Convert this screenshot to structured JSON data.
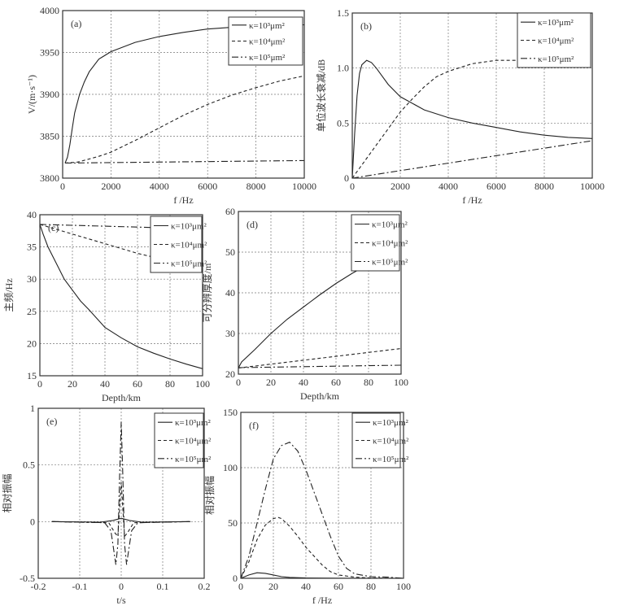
{
  "chart_data": [
    {
      "type": "line",
      "panel_label": "(a)",
      "xlabel": "f /Hz",
      "ylabel": "V/(m·s⁻¹)",
      "xlim": [
        0,
        10000
      ],
      "ylim": [
        3800,
        4000
      ],
      "grid": true,
      "legend": "top-right",
      "xticks": [
        0,
        2000,
        4000,
        6000,
        8000,
        10000
      ],
      "xtick_labels": [
        "0",
        "2000",
        "4000",
        "6000",
        "8000",
        "10000"
      ],
      "yticks": [
        3800,
        3850,
        3900,
        3950,
        4000
      ],
      "ytick_labels": [
        "3800",
        "3850",
        "3900",
        "3950",
        "4000"
      ],
      "series": [
        {
          "name": "κ=10³μm²",
          "x": [
            100,
            200,
            300,
            400,
            500,
            700,
            900,
            1100,
            1500,
            2000,
            3000,
            4000,
            5000,
            6000,
            7000,
            8000,
            10000
          ],
          "y": [
            3818,
            3825,
            3840,
            3860,
            3878,
            3900,
            3915,
            3927,
            3942,
            3951,
            3962,
            3969,
            3974,
            3978,
            3980,
            3981,
            3983
          ]
        },
        {
          "name": "κ=10⁴μm²",
          "x": [
            100,
            600,
            1000,
            1500,
            2000,
            3000,
            4000,
            5000,
            6000,
            7000,
            8000,
            9000,
            10000
          ],
          "y": [
            3818,
            3819,
            3822,
            3826,
            3831,
            3845,
            3860,
            3875,
            3888,
            3899,
            3908,
            3916,
            3922
          ]
        },
        {
          "name": "κ=10⁵μm²",
          "x": [
            100,
            10000
          ],
          "y": [
            3818,
            3821
          ]
        }
      ]
    },
    {
      "type": "line",
      "panel_label": "(b)",
      "xlabel": "f /Hz",
      "ylabel": "单位波长衰减/dB",
      "xlim": [
        0,
        10000
      ],
      "ylim": [
        0,
        1.5
      ],
      "grid": true,
      "legend": "top-right",
      "xticks": [
        0,
        2000,
        4000,
        6000,
        8000,
        10000
      ],
      "xtick_labels": [
        "0",
        "2000",
        "4000",
        "6000",
        "8000",
        "10000"
      ],
      "yticks": [
        0,
        0.5,
        1.0,
        1.5
      ],
      "ytick_labels": [
        "0",
        "0.5",
        "1.0",
        "1.5"
      ],
      "series": [
        {
          "name": "κ=10³μm²",
          "x": [
            0,
            100,
            200,
            300,
            400,
            600,
            800,
            1000,
            1500,
            2000,
            3000,
            4000,
            5000,
            6000,
            7000,
            8000,
            9000,
            10000
          ],
          "y": [
            0,
            0.4,
            0.75,
            0.95,
            1.03,
            1.07,
            1.05,
            1.0,
            0.85,
            0.74,
            0.62,
            0.55,
            0.5,
            0.46,
            0.42,
            0.39,
            0.37,
            0.36
          ]
        },
        {
          "name": "κ=10⁴μm²",
          "x": [
            0,
            500,
            1000,
            1500,
            2000,
            2500,
            3000,
            3500,
            4000,
            5000,
            6000,
            7000,
            8000
          ],
          "y": [
            0,
            0.15,
            0.3,
            0.45,
            0.6,
            0.72,
            0.83,
            0.92,
            0.97,
            1.04,
            1.07,
            1.07,
            1.07
          ]
        },
        {
          "name": "κ=10⁵μm²",
          "x": [
            0,
            10000
          ],
          "y": [
            0,
            0.34
          ]
        }
      ]
    },
    {
      "type": "line",
      "panel_label": "(c)",
      "xlabel": "Depth/km",
      "ylabel": "主频/Hz",
      "xlim": [
        0,
        100
      ],
      "ylim": [
        15,
        40
      ],
      "grid": true,
      "legend": "top-right",
      "xticks": [
        0,
        20,
        40,
        60,
        80,
        100
      ],
      "xtick_labels": [
        "0",
        "20",
        "40",
        "60",
        "80",
        "100"
      ],
      "yticks": [
        15,
        20,
        25,
        30,
        35,
        40
      ],
      "ytick_labels": [
        "15",
        "20",
        "25",
        "30",
        "35",
        "40"
      ],
      "series": [
        {
          "name": "κ=10³μm²",
          "x": [
            0,
            2,
            5,
            10,
            15,
            20,
            25,
            30,
            40,
            50,
            60,
            70,
            80,
            90,
            100
          ],
          "y": [
            38.5,
            37,
            35,
            32.5,
            30,
            28.3,
            26.6,
            25.3,
            22.5,
            20.9,
            19.5,
            18.5,
            17.6,
            16.8,
            16.1
          ]
        },
        {
          "name": "κ=10⁴μm²",
          "x": [
            0,
            20,
            40,
            60,
            70,
            100
          ],
          "y": [
            38.5,
            37,
            35.5,
            34,
            33.4,
            32
          ]
        },
        {
          "name": "κ=10⁵μm²",
          "x": [
            0,
            100
          ],
          "y": [
            38.5,
            37.8
          ]
        }
      ]
    },
    {
      "type": "line",
      "panel_label": "(d)",
      "xlabel": "Depth/km",
      "ylabel": "可分辨厚度/m",
      "xlim": [
        0,
        100
      ],
      "ylim": [
        20,
        60
      ],
      "grid": true,
      "legend": "top-right",
      "xticks": [
        0,
        20,
        40,
        60,
        80,
        100
      ],
      "xtick_labels": [
        "0",
        "20",
        "40",
        "60",
        "80",
        "100"
      ],
      "yticks": [
        20,
        30,
        40,
        50,
        60
      ],
      "ytick_labels": [
        "20",
        "30",
        "40",
        "50",
        "60"
      ],
      "series": [
        {
          "name": "κ=10³μm²",
          "x": [
            0,
            2,
            10,
            20,
            30,
            40,
            50,
            60,
            70,
            80
          ],
          "y": [
            21.5,
            23,
            26,
            30,
            33.5,
            36.5,
            39.5,
            42.3,
            44.8,
            47
          ]
        },
        {
          "name": "κ=10⁴μm²",
          "x": [
            0,
            100
          ],
          "y": [
            21.5,
            26.3
          ]
        },
        {
          "name": "κ=10⁵μm²",
          "x": [
            0,
            100
          ],
          "y": [
            21.6,
            22.2
          ]
        }
      ]
    },
    {
      "type": "line",
      "panel_label": "(e)",
      "xlabel": "t/s",
      "ylabel": "相对振幅",
      "xlim": [
        -0.2,
        0.2
      ],
      "ylim": [
        -0.5,
        1
      ],
      "grid": true,
      "legend": "top-right",
      "xticks": [
        -0.2,
        -0.1,
        0,
        0.1,
        0.2
      ],
      "xtick_labels": [
        "-0.2",
        "-0.1",
        "0",
        "0.1",
        "0.2"
      ],
      "yticks": [
        -0.5,
        0,
        0.5,
        1
      ],
      "ytick_labels": [
        "-0.5",
        "0",
        "0.5",
        "1"
      ],
      "series": [
        {
          "name": "κ=10³μm²",
          "x": [
            -0.167,
            -0.05,
            -0.02,
            0,
            0.02,
            0.05,
            0.167
          ],
          "y": [
            0,
            -0.005,
            0.01,
            0.03,
            0.01,
            -0.005,
            0
          ]
        },
        {
          "name": "κ=10⁴μm²",
          "x": [
            -0.167,
            -0.03,
            -0.015,
            -0.008,
            0,
            0.008,
            0.015,
            0.03,
            0.167
          ],
          "y": [
            0,
            -0.01,
            -0.1,
            -0.13,
            0.35,
            -0.13,
            -0.1,
            -0.01,
            0
          ]
        },
        {
          "name": "κ=10⁵μm²",
          "x": [
            -0.167,
            -0.04,
            -0.025,
            -0.018,
            -0.013,
            -0.008,
            -0.004,
            0,
            0.004,
            0.008,
            0.013,
            0.018,
            0.025,
            0.04,
            0.167
          ],
          "y": [
            0,
            -0.01,
            -0.08,
            -0.25,
            -0.38,
            -0.2,
            0.4,
            0.88,
            0.4,
            -0.2,
            -0.38,
            -0.25,
            -0.08,
            -0.01,
            0
          ]
        }
      ]
    },
    {
      "type": "line",
      "panel_label": "(f)",
      "xlabel": "f /Hz",
      "ylabel": "相对振幅",
      "xlim": [
        0,
        100
      ],
      "ylim": [
        0,
        150
      ],
      "grid": true,
      "legend": "top-right",
      "xticks": [
        0,
        20,
        40,
        60,
        80,
        100
      ],
      "xtick_labels": [
        "0",
        "20",
        "40",
        "60",
        "80",
        "100"
      ],
      "yticks": [
        0,
        50,
        100,
        150
      ],
      "ytick_labels": [
        "0",
        "50",
        "100",
        "150"
      ],
      "series": [
        {
          "name": "κ=10³μm²",
          "x": [
            0,
            5,
            10,
            15,
            20,
            25,
            30,
            40,
            60,
            100
          ],
          "y": [
            0,
            3,
            5,
            4.5,
            3,
            1.5,
            0.8,
            0.3,
            0.1,
            0
          ]
        },
        {
          "name": "κ=10⁴μm²",
          "x": [
            0,
            5,
            10,
            15,
            20,
            23,
            25,
            30,
            35,
            40,
            45,
            50,
            55,
            60,
            70,
            80,
            100
          ],
          "y": [
            0,
            15,
            35,
            48,
            54,
            55,
            54,
            47,
            38,
            28,
            20,
            12,
            6,
            3,
            1,
            0.3,
            0
          ]
        },
        {
          "name": "κ=10⁵μm²",
          "x": [
            0,
            5,
            10,
            15,
            20,
            25,
            30,
            35,
            40,
            45,
            50,
            55,
            60,
            65,
            70,
            80,
            90,
            100
          ],
          "y": [
            0,
            20,
            50,
            80,
            108,
            120,
            123,
            115,
            98,
            78,
            58,
            38,
            20,
            9,
            4,
            1.5,
            1,
            0
          ]
        }
      ]
    }
  ]
}
